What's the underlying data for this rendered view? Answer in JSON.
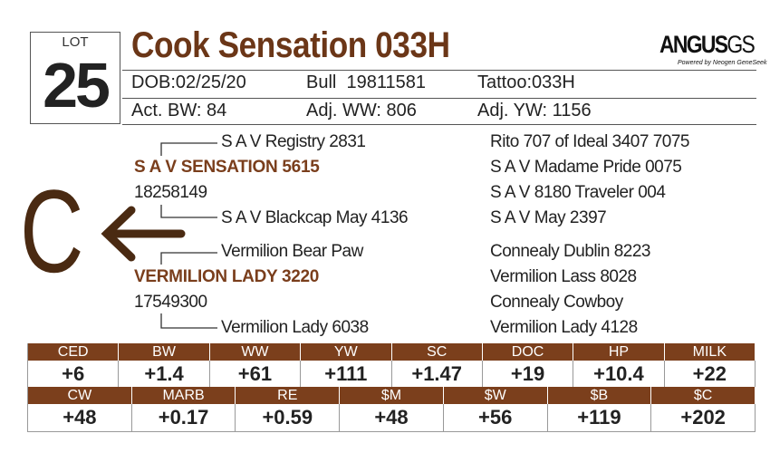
{
  "lot": {
    "label": "LOT",
    "number": "25"
  },
  "title": "Cook Sensation 033H",
  "logo": {
    "brand": "ANGUS",
    "suffix": "GS",
    "tagline": "Powered by Neogen GeneSeek"
  },
  "info": [
    [
      "DOB:02/25/20",
      "Bull  19811581",
      "Tattoo:033H"
    ],
    [
      "Act. BW: 84",
      "Adj. WW: 806",
      "Adj. YW: 1156"
    ]
  ],
  "pedigree": {
    "sire": {
      "sire": "S A V Registry 2831",
      "name": "S A V SENSATION 5615",
      "reg": "18258149",
      "dam": "S A V Blackcap May 4136"
    },
    "dam": {
      "sire": "Vermilion Bear Paw",
      "name": "VERMILION LADY 3220",
      "reg": "17549300",
      "dam": "Vermilion Lady 6038"
    },
    "grandparents": [
      "Rito 707 of Ideal 3407 7075",
      "S A V Madame Pride 0075",
      "S A V 8180 Traveler 004",
      "S A V May 2397",
      "Connealy Dublin 8223",
      "Vermilion Lass 8028",
      "Connealy Cowboy",
      "Vermilion Lady 4128"
    ]
  },
  "mark": "C",
  "epd_tables": [
    {
      "headers": [
        "CED",
        "BW",
        "WW",
        "YW",
        "SC",
        "DOC",
        "HP",
        "MILK"
      ],
      "values": [
        "+6",
        "+1.4",
        "+61",
        "+111",
        "+1.47",
        "+19",
        "+10.4",
        "+22"
      ]
    },
    {
      "headers": [
        "CW",
        "MARB",
        "RE",
        "$M",
        "$W",
        "$B",
        "$C"
      ],
      "values": [
        "+48",
        "+0.17",
        "+0.59",
        "+48",
        "+56",
        "+119",
        "+202"
      ]
    }
  ]
}
